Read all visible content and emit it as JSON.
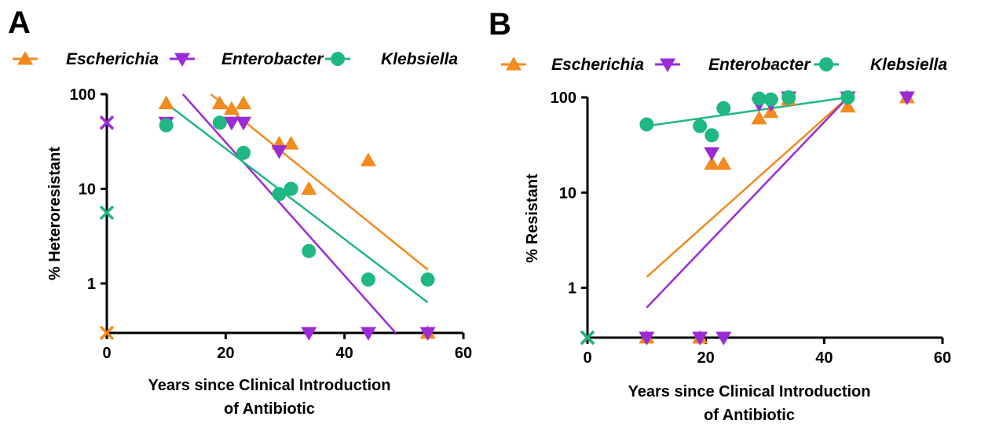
{
  "colors": {
    "Escherichia": "#F28A1E",
    "Enterobacter": "#9B2BD6",
    "Klebsiella": "#1FB782"
  },
  "chart_data": [
    {
      "type": "scatter",
      "panel_label": "A",
      "xlabel_lines": [
        "Years since Clinical Introduction",
        "of Antibiotic"
      ],
      "ylabel": "% Heteroresistant",
      "xlim": [
        0,
        60
      ],
      "ylim": [
        0.3,
        100
      ],
      "y_scale": "log",
      "x_ticks": [
        0,
        20,
        40,
        60
      ],
      "y_ticks": [
        1,
        10,
        100
      ],
      "grid": false,
      "legend": "top",
      "series": [
        {
          "name": "Escherichia",
          "marker": "triangle-up",
          "points": [
            [
              10,
              80
            ],
            [
              19,
              80
            ],
            [
              21,
              70
            ],
            [
              23,
              80
            ],
            [
              29,
              30
            ],
            [
              31,
              30
            ],
            [
              34,
              10
            ],
            [
              44,
              20
            ],
            [
              54,
              0.3
            ]
          ],
          "zero_x_value": 0.3,
          "fit": [
            [
              17.5,
              100
            ],
            [
              54,
              1.4
            ]
          ]
        },
        {
          "name": "Enterobacter",
          "marker": "triangle-down",
          "points": [
            [
              10,
              50
            ],
            [
              21,
              50
            ],
            [
              23,
              50
            ],
            [
              29,
              25
            ],
            [
              34,
              0.3
            ],
            [
              44,
              0.3
            ],
            [
              54,
              0.3
            ]
          ],
          "zero_x_value": 50,
          "fit": [
            [
              12.8,
              100
            ],
            [
              48.6,
              0.3
            ]
          ]
        },
        {
          "name": "Klebsiella",
          "marker": "circle",
          "points": [
            [
              10,
              47
            ],
            [
              19,
              50
            ],
            [
              23,
              24
            ],
            [
              29,
              8.8
            ],
            [
              31,
              10
            ],
            [
              34,
              2.2
            ],
            [
              44,
              1.1
            ],
            [
              54,
              1.1
            ]
          ],
          "zero_x_value": 5.6,
          "fit": [
            [
              10,
              80
            ],
            [
              54,
              0.63
            ]
          ]
        }
      ]
    },
    {
      "type": "scatter",
      "panel_label": "B",
      "xlabel_lines": [
        "Years since Clinical Introduction",
        "of Antibiotic"
      ],
      "ylabel": "% Resistant",
      "xlim": [
        0,
        60
      ],
      "ylim": [
        0.3,
        100
      ],
      "y_scale": "log",
      "x_ticks": [
        0,
        20,
        40,
        60
      ],
      "y_ticks": [
        1,
        10,
        100
      ],
      "grid": false,
      "legend": "top",
      "series": [
        {
          "name": "Escherichia",
          "marker": "triangle-up",
          "points": [
            [
              10,
              0.3
            ],
            [
              19,
              0.3
            ],
            [
              21,
              20
            ],
            [
              23,
              20
            ],
            [
              29,
              60
            ],
            [
              31,
              70
            ],
            [
              34,
              95
            ],
            [
              44,
              80
            ],
            [
              54,
              100
            ]
          ],
          "zero_x_value": 0.3,
          "fit": [
            [
              10,
              1.3
            ],
            [
              44,
              100
            ]
          ]
        },
        {
          "name": "Enterobacter",
          "marker": "triangle-down",
          "points": [
            [
              10,
              0.3
            ],
            [
              19,
              0.3
            ],
            [
              21,
              26
            ],
            [
              23,
              0.3
            ],
            [
              29,
              85
            ],
            [
              31,
              85
            ],
            [
              34,
              100
            ],
            [
              44,
              100
            ],
            [
              54,
              100
            ]
          ],
          "zero_x_value": 0.3,
          "fit": [
            [
              10,
              0.62
            ],
            [
              44,
              100
            ]
          ]
        },
        {
          "name": "Klebsiella",
          "marker": "circle",
          "points": [
            [
              10,
              52
            ],
            [
              19,
              50
            ],
            [
              21,
              40
            ],
            [
              23,
              77
            ],
            [
              29,
              97
            ],
            [
              31,
              95
            ],
            [
              34,
              100
            ],
            [
              44,
              100
            ]
          ],
          "zero_x_value": 0.3,
          "fit": [
            [
              10,
              50
            ],
            [
              44,
              100
            ]
          ]
        }
      ]
    }
  ]
}
